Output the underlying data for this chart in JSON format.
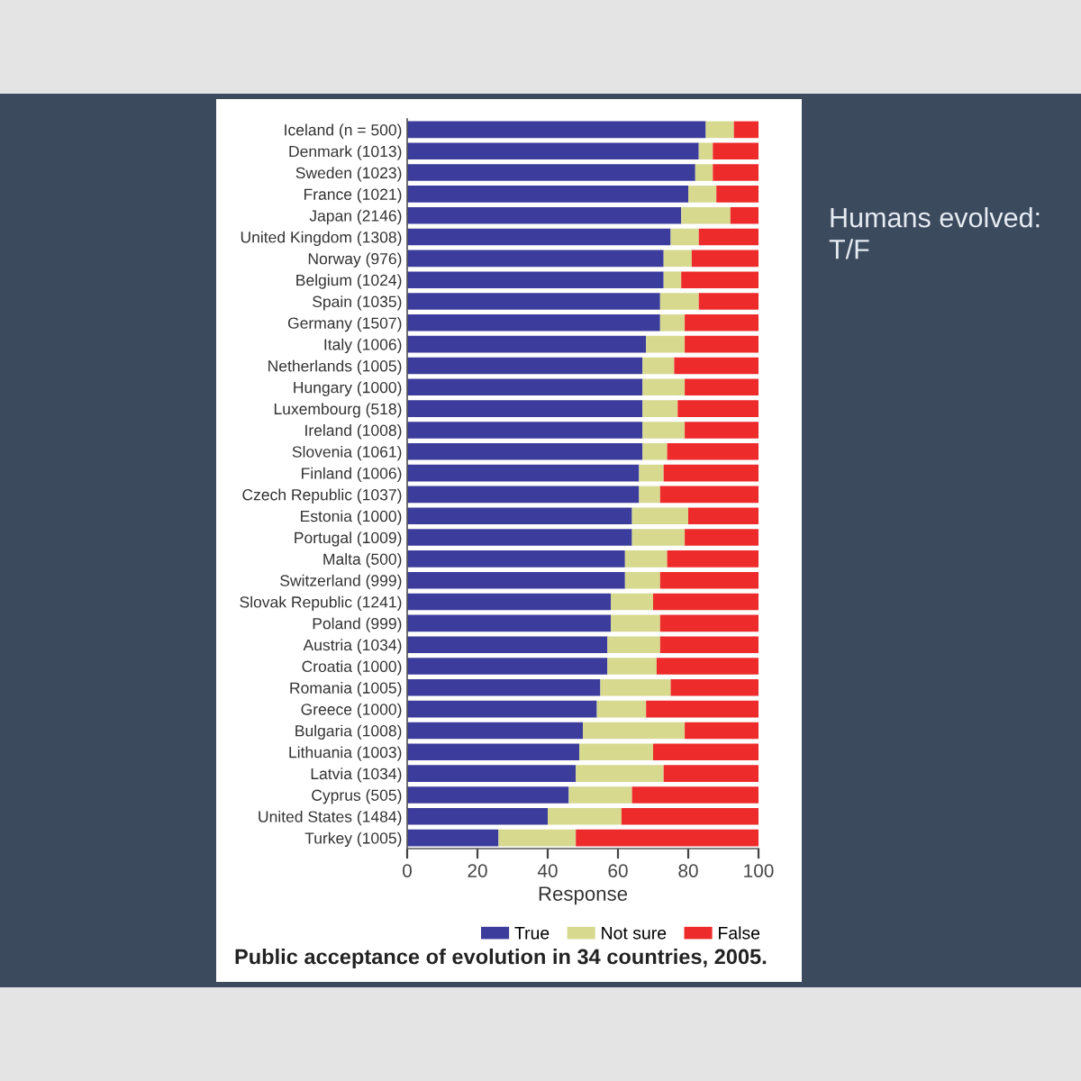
{
  "chart_data": {
    "type": "bar",
    "orientation": "horizontal",
    "stacked": true,
    "title": "Public acceptance of evolution in 34 countries, 2005.",
    "xlabel": "Response",
    "annotations": [
      "Humans evolved:\nT/F"
    ],
    "categories": [
      "Iceland (n = 500)",
      "Denmark (1013)",
      "Sweden (1023)",
      "France (1021)",
      "Japan (2146)",
      "United Kingdom (1308)",
      "Norway (976)",
      "Belgium (1024)",
      "Spain (1035)",
      "Germany (1507)",
      "Italy (1006)",
      "Netherlands (1005)",
      "Hungary (1000)",
      "Luxembourg (518)",
      "Ireland (1008)",
      "Slovenia (1061)",
      "Finland (1006)",
      "Czech Republic (1037)",
      "Estonia (1000)",
      "Portugal (1009)",
      "Malta (500)",
      "Switzerland (999)",
      "Slovak Republic (1241)",
      "Poland (999)",
      "Austria (1034)",
      "Croatia (1000)",
      "Romania (1005)",
      "Greece (1000)",
      "Bulgaria (1008)",
      "Lithuania (1003)",
      "Latvia (1034)",
      "Cyprus (505)",
      "United States (1484)",
      "Turkey (1005)"
    ],
    "series": [
      {
        "name": "True",
        "color": "#3c3c9c",
        "values": [
          85,
          83,
          82,
          80,
          78,
          75,
          73,
          73,
          72,
          72,
          68,
          67,
          67,
          67,
          67,
          67,
          66,
          66,
          64,
          64,
          62,
          62,
          58,
          58,
          57,
          57,
          55,
          54,
          50,
          49,
          48,
          46,
          40,
          26
        ]
      },
      {
        "name": "Not sure",
        "color": "#d6d98e",
        "values": [
          8,
          4,
          5,
          8,
          14,
          8,
          8,
          5,
          11,
          7,
          11,
          9,
          12,
          10,
          12,
          7,
          7,
          6,
          16,
          15,
          12,
          10,
          12,
          14,
          15,
          14,
          20,
          14,
          29,
          21,
          25,
          18,
          21,
          22
        ]
      },
      {
        "name": "False",
        "color": "#ee2b2b",
        "values": [
          7,
          13,
          13,
          12,
          8,
          17,
          19,
          22,
          17,
          21,
          21,
          24,
          21,
          23,
          21,
          26,
          27,
          28,
          20,
          21,
          26,
          28,
          30,
          28,
          28,
          29,
          25,
          32,
          21,
          30,
          27,
          36,
          39,
          52
        ]
      }
    ],
    "xlim": [
      0,
      100
    ],
    "xticks": [
      0,
      20,
      40,
      60,
      80,
      100
    ],
    "legend": "bottom right",
    "grid": false
  }
}
